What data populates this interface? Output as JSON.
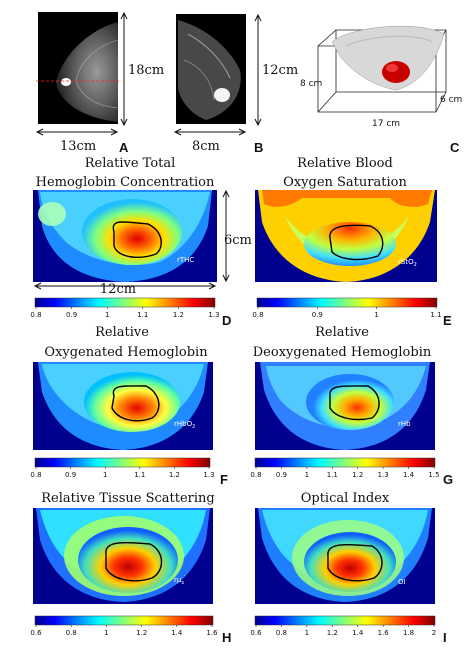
{
  "panels": {
    "A": {
      "letter": "A",
      "dim_v": "18cm",
      "dim_h": "13cm"
    },
    "B": {
      "letter": "B",
      "dim_v": "12cm",
      "dim_h": "8cm"
    },
    "C": {
      "letter": "C",
      "dim_v": "8 cm",
      "dim_d": "6 cm",
      "dim_h": "17 cm"
    },
    "D": {
      "letter": "D",
      "title1": "Relative Total",
      "title2": "Hemoglobin Concentration",
      "inset": "rTHC",
      "dim_v": "6cm",
      "dim_h": "12cm",
      "cbar_ticks": [
        "0.8",
        "0.9",
        "1",
        "1.1",
        "1.2",
        "1.3"
      ]
    },
    "E": {
      "letter": "E",
      "title1": "Relative Blood",
      "title2": "Oxygen Saturation",
      "inset": "rStO",
      "inset_sub": "2",
      "cbar_ticks": [
        "0.8",
        "0.9",
        "1",
        "1.1"
      ]
    },
    "F": {
      "letter": "F",
      "title1": "Relative",
      "title2": "Oxygenated Hemoglobin",
      "inset": "rHbO",
      "inset_sub": "2",
      "cbar_ticks": [
        "0.8",
        "0.9",
        "1",
        "1.1",
        "1.2",
        "1.3"
      ]
    },
    "G": {
      "letter": "G",
      "title1": "Relative",
      "title2": "Deoxygenated Hemoglobin",
      "inset": "rHb",
      "cbar_ticks": [
        "0.8",
        "0.9",
        "1",
        "1.1",
        "1.2",
        "1.3",
        "1.4",
        "1.5"
      ]
    },
    "H": {
      "letter": "H",
      "title1": "Relative Tissue Scattering",
      "inset": "rμ",
      "inset_sub": "s",
      "inset_sup": "′",
      "cbar_ticks": [
        "0.6",
        "0.8",
        "1",
        "1.2",
        "1.4",
        "1.6"
      ]
    },
    "I": {
      "letter": "I",
      "title1": "Optical Index",
      "inset": "OI",
      "cbar_ticks": [
        "0.6",
        "0.8",
        "1",
        "1.2",
        "1.4",
        "1.6",
        "1.8",
        "2"
      ]
    }
  },
  "colors": {
    "jet": [
      "#00008f",
      "#0000ff",
      "#00ffff",
      "#ffff00",
      "#ff0000",
      "#800000"
    ]
  }
}
